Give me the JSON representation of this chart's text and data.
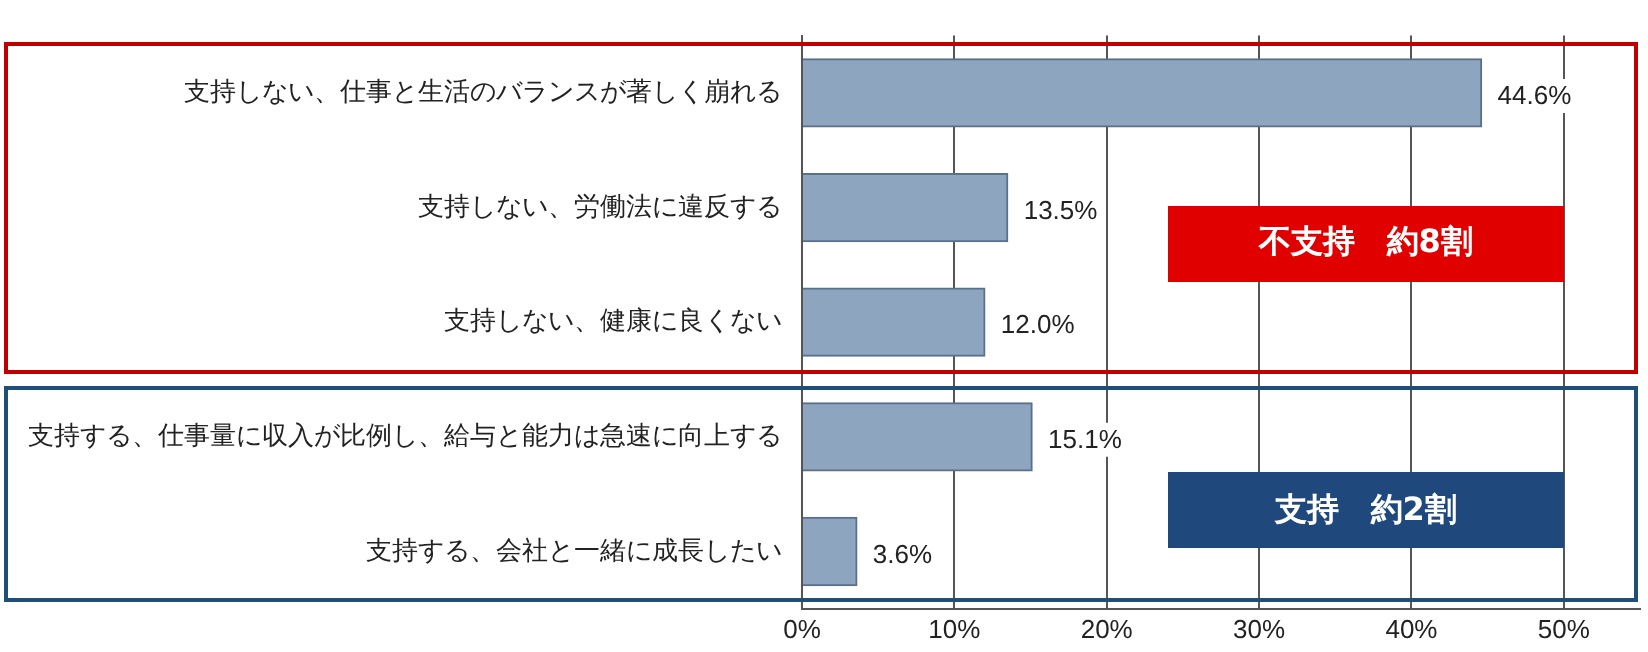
{
  "chart_data": {
    "type": "bar",
    "orientation": "horizontal",
    "categories": [
      "支持しない、仕事と生活のバランスが著しく崩れる",
      "支持しない、労働法に違反する",
      "支持しない、健康に良くない",
      "支持する、仕事量に収入が比例し、給与と能力は急速に向上する",
      "支持する、会社と一緒に成長したい"
    ],
    "values": [
      44.6,
      13.5,
      12.0,
      15.1,
      3.6
    ],
    "value_labels": [
      "44.6%",
      "13.5%",
      "12.0%",
      "15.1%",
      "3.6%"
    ],
    "color": "#8ea5c0",
    "xlim": [
      0,
      55
    ],
    "xticks": [
      {
        "value": 0,
        "label": "0%"
      },
      {
        "value": 10,
        "label": "10%"
      },
      {
        "value": 20,
        "label": "20%"
      },
      {
        "value": 30,
        "label": "30%"
      },
      {
        "value": 40,
        "label": "40%"
      },
      {
        "value": 50,
        "label": "50%"
      }
    ],
    "grid": "x",
    "annotations": [
      "不支持　約8割",
      "支持　約2割"
    ]
  }
}
